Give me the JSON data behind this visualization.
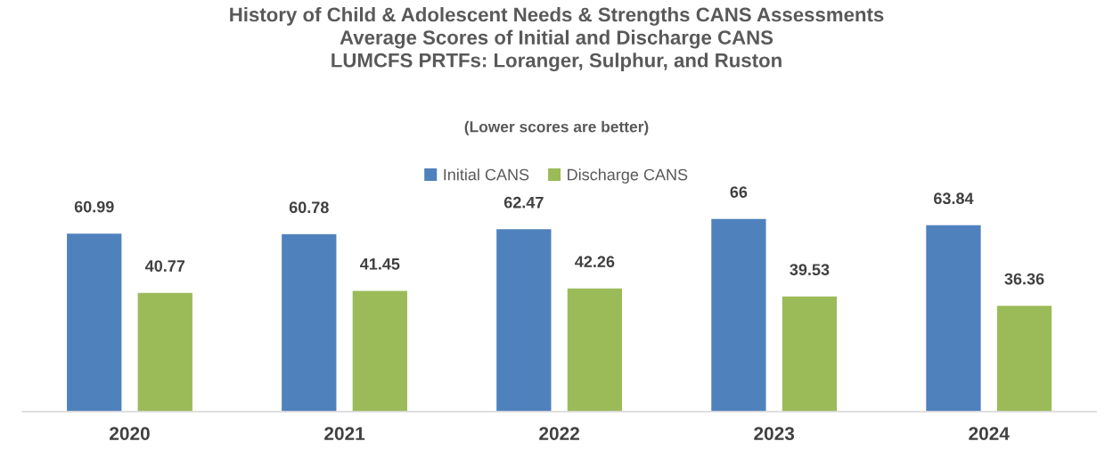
{
  "chart_data": {
    "type": "bar",
    "title": "History of Child & Adolescent Needs & Strengths CANS Assessments\nAverage Scores of Initial and Discharge CANS\nLUMCFS PRTFs: Loranger, Sulphur, and Ruston",
    "subtitle": "(Lower scores are better)",
    "categories": [
      "2020",
      "2021",
      "2022",
      "2023",
      "2024"
    ],
    "series": [
      {
        "name": "Initial CANS",
        "color": "#4f81bd",
        "values": [
          60.99,
          60.78,
          62.47,
          66,
          63.84
        ]
      },
      {
        "name": "Discharge CANS",
        "color": "#9bbb59",
        "values": [
          40.77,
          41.45,
          42.26,
          39.53,
          36.36
        ]
      }
    ],
    "data_labels": true,
    "legend": "top",
    "grid": false,
    "tick_labels": "x"
  }
}
